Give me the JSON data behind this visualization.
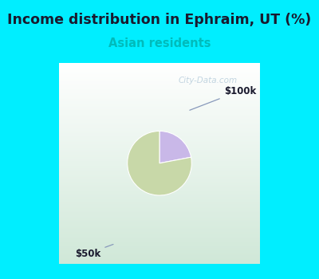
{
  "title": "Income distribution in Ephraim, UT (%)",
  "subtitle": "Asian residents",
  "title_color": "#1a1a2e",
  "subtitle_color": "#00bbbb",
  "outer_bg_color": "#00eeff",
  "chart_bg_top": "#ffffff",
  "chart_bg_bottom": "#d8eedd",
  "slices": [
    {
      "label": "$100k",
      "value": 22,
      "color": "#c9b8e8"
    },
    {
      "label": "$50k",
      "value": 78,
      "color": "#c8d8a8"
    }
  ],
  "startangle": 90,
  "watermark": "City-Data.com"
}
